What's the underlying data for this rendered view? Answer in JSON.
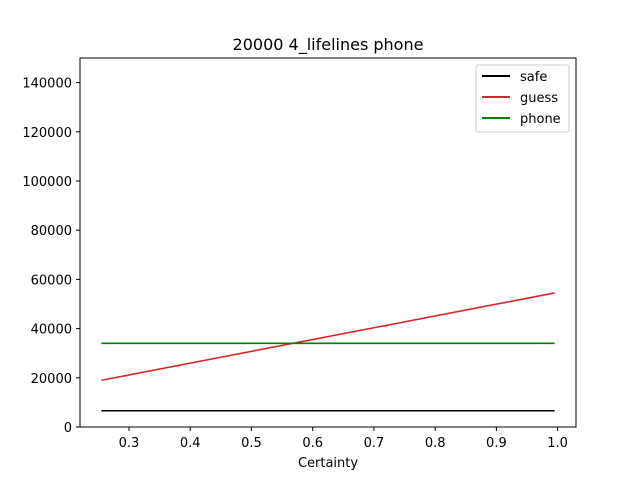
{
  "chart_data": {
    "type": "line",
    "title": "20000 4_lifelines phone",
    "xlabel": "Certainty",
    "ylabel": "",
    "xlim": [
      0.22,
      1.03
    ],
    "ylim": [
      0,
      150000
    ],
    "xticks": [
      0.3,
      0.4,
      0.5,
      0.6,
      0.7,
      0.8,
      0.9,
      1.0
    ],
    "xtick_labels": [
      "0.3",
      "0.4",
      "0.5",
      "0.6",
      "0.7",
      "0.8",
      "0.9",
      "1.0"
    ],
    "yticks": [
      0,
      20000,
      40000,
      60000,
      80000,
      100000,
      120000,
      140000
    ],
    "ytick_labels": [
      "0",
      "20000",
      "40000",
      "60000",
      "80000",
      "100000",
      "120000",
      "140000"
    ],
    "legend_position": "upper right",
    "grid": false,
    "series": [
      {
        "name": "safe",
        "color": "#000000",
        "x": [
          0.255,
          0.995
        ],
        "y": [
          6600,
          6600
        ]
      },
      {
        "name": "guess",
        "color": "#d62728",
        "x": [
          0.255,
          0.995
        ],
        "y": [
          19000,
          54500
        ]
      },
      {
        "name": "phone",
        "color": "#008000",
        "x": [
          0.255,
          0.995
        ],
        "y": [
          34000,
          34000
        ]
      }
    ]
  }
}
